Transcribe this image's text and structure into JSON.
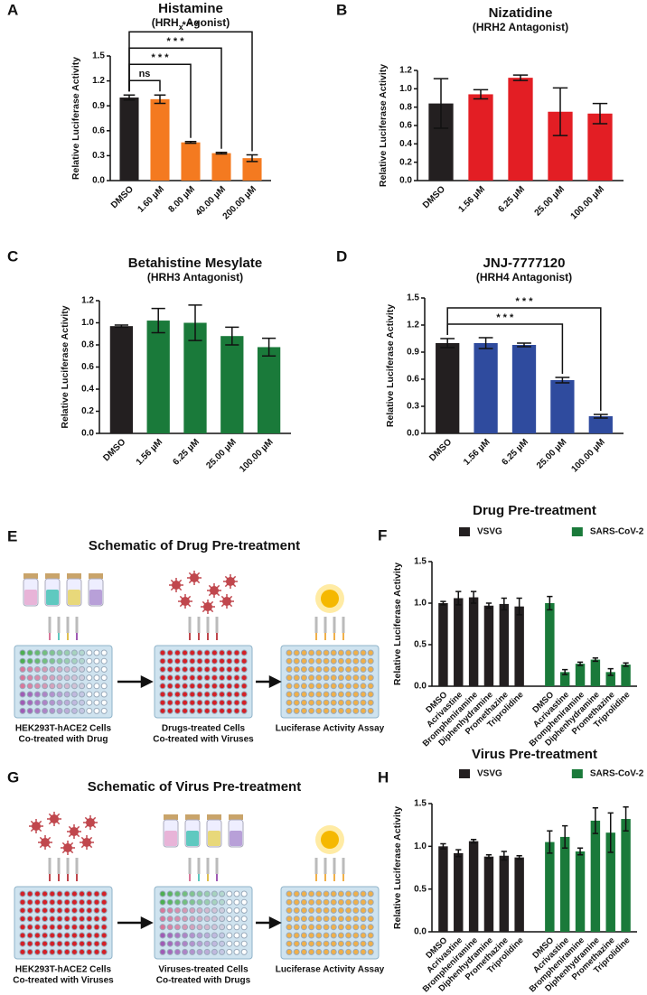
{
  "chart_data": [
    {
      "type": "bar",
      "panel": "A",
      "title": "Histamine",
      "subtitle": [
        "(HRH",
        "x",
        " Agonist)"
      ],
      "y_label": "Relative Luciferase Activity",
      "categories": [
        "DMSO",
        "1.60 µM",
        "8.00 µM",
        "40.00 µM",
        "200.00 µM"
      ],
      "values": [
        1.0,
        0.98,
        0.46,
        0.33,
        0.27
      ],
      "errors": [
        0.03,
        0.05,
        0.01,
        0.01,
        0.04
      ],
      "colors": [
        "#231f20",
        "#f47a20",
        "#f47a20",
        "#f47a20",
        "#f47a20"
      ],
      "ylim": [
        0,
        1.5
      ],
      "yticks": [
        {
          "value": 0,
          "label": "0.0"
        },
        0.3,
        0.6,
        0.9,
        1.2,
        1.5
      ],
      "annotations": [
        {
          "text": "ns",
          "between": [
            "DMSO",
            "1.60 µM"
          ]
        },
        {
          "text": "* * *",
          "between": [
            "DMSO",
            "8.00 µM"
          ]
        },
        {
          "text": "* * *",
          "between": [
            "DMSO",
            "40.00 µM"
          ]
        },
        {
          "text": "* * *",
          "between": [
            "DMSO",
            "200.00 µM"
          ]
        }
      ]
    },
    {
      "type": "bar",
      "panel": "B",
      "title": "Nizatidine",
      "subtitle": "(HRH2 Antagonist)",
      "y_label": "Relative Luciferase Activity",
      "categories": [
        "DMSO",
        "1.56 µM",
        "6.25 µM",
        "25.00 µM",
        "100.00 µM"
      ],
      "values": [
        0.84,
        0.94,
        1.12,
        0.75,
        0.73
      ],
      "errors": [
        0.27,
        0.05,
        0.03,
        0.26,
        0.11
      ],
      "colors": [
        "#231f20",
        "#e31e24",
        "#e31e24",
        "#e31e24",
        "#e31e24"
      ],
      "ylim": [
        0,
        1.2
      ],
      "yticks": [
        {
          "value": 0,
          "label": "0.0"
        },
        0.2,
        0.4,
        0.6,
        0.8,
        {
          "value": 1,
          "label": "1.0"
        },
        1.2
      ]
    },
    {
      "type": "bar",
      "panel": "C",
      "title": "Betahistine Mesylate",
      "subtitle": "(HRH3 Antagonist)",
      "y_label": "Relative Luciferase Activity",
      "categories": [
        "DMSO",
        "1.56 µM",
        "6.25 µM",
        "25.00 µM",
        "100.00 µM"
      ],
      "values": [
        0.97,
        1.02,
        1.0,
        0.88,
        0.78
      ],
      "errors": [
        0.01,
        0.11,
        0.16,
        0.08,
        0.08
      ],
      "colors": [
        "#231f20",
        "#1a7a3a",
        "#1a7a3a",
        "#1a7a3a",
        "#1a7a3a"
      ],
      "ylim": [
        0,
        1.2
      ],
      "yticks": [
        {
          "value": 0,
          "label": "0.0"
        },
        0.2,
        0.4,
        0.6,
        0.8,
        {
          "value": 1,
          "label": "1.0"
        },
        1.2
      ]
    },
    {
      "type": "bar",
      "panel": "D",
      "title": "JNJ-7777120",
      "subtitle": "(HRH4 Antagonist)",
      "y_label": "Relative Luciferase Activity",
      "categories": [
        "DMSO",
        "1.56 µM",
        "6.25 µM",
        "25.00 µM",
        "100.00 µM"
      ],
      "values": [
        1.0,
        1.0,
        0.98,
        0.59,
        0.19
      ],
      "errors": [
        0.05,
        0.06,
        0.02,
        0.03,
        0.02
      ],
      "colors": [
        "#231f20",
        "#2f4b9e",
        "#2f4b9e",
        "#2f4b9e",
        "#2f4b9e"
      ],
      "ylim": [
        0,
        1.5
      ],
      "yticks": [
        {
          "value": 0,
          "label": "0.0"
        },
        0.3,
        0.6,
        0.9,
        1.2,
        1.5
      ],
      "annotations": [
        {
          "text": "* * *",
          "between": [
            "DMSO",
            "25.00 µM"
          ]
        },
        {
          "text": "* * *",
          "between": [
            "DMSO",
            "100.00 µM"
          ]
        }
      ]
    },
    {
      "type": "bar",
      "panel": "F",
      "title": "Drug Pre-treatment",
      "y_label": "Relative Luciferase Activity",
      "categories": [
        "DMSO",
        "Acrivastine",
        "Brompheniramine",
        "Diphenhydramine",
        "Promethazine",
        "Triprolidine"
      ],
      "series": [
        {
          "name": "VSVG",
          "color": "#231f20",
          "values": [
            1.0,
            1.06,
            1.07,
            0.97,
            0.99,
            0.96
          ],
          "errors": [
            0.02,
            0.08,
            0.07,
            0.03,
            0.07,
            0.1
          ]
        },
        {
          "name": "SARS-CoV-2",
          "color": "#1a7a3a",
          "values": [
            1.0,
            0.17,
            0.27,
            0.32,
            0.17,
            0.26
          ],
          "errors": [
            0.08,
            0.03,
            0.02,
            0.02,
            0.04,
            0.02
          ]
        }
      ],
      "ylim": [
        0,
        1.5
      ],
      "yticks": [
        {
          "value": 0,
          "label": "0.0"
        },
        0.5,
        {
          "value": 1,
          "label": "1.0"
        },
        1.5
      ]
    },
    {
      "type": "bar",
      "panel": "H",
      "title": "Virus Pre-treatment",
      "y_label": "Relative Luciferase Activity",
      "categories": [
        "DMSO",
        "Acrivastine",
        "Brompheniramine",
        "Diphenhydramine",
        "Promethazine",
        "Triprolidine"
      ],
      "series": [
        {
          "name": "VSVG",
          "color": "#231f20",
          "values": [
            1.0,
            0.92,
            1.06,
            0.88,
            0.89,
            0.87
          ],
          "errors": [
            0.03,
            0.04,
            0.02,
            0.02,
            0.05,
            0.02
          ]
        },
        {
          "name": "SARS-CoV-2",
          "color": "#1a7a3a",
          "values": [
            1.05,
            1.11,
            0.94,
            1.3,
            1.16,
            1.32
          ],
          "errors": [
            0.13,
            0.13,
            0.04,
            0.15,
            0.23,
            0.14
          ]
        }
      ],
      "ylim": [
        0,
        1.5
      ],
      "yticks": [
        {
          "value": 0,
          "label": "0.0"
        },
        0.5,
        {
          "value": 1,
          "label": "1.0"
        },
        1.5
      ]
    }
  ],
  "schematics": [
    {
      "panel": "E",
      "title": "Schematic of Drug Pre-treatment",
      "captions": [
        [
          "HEK293T-hACE2 Cells",
          "Co-treated with Drug"
        ],
        [
          "Drugs-treated Cells",
          "Co-treated with Viruses"
        ],
        [
          "Luciferase Activity Assay"
        ]
      ]
    },
    {
      "panel": "G",
      "title": "Schematic of Virus Pre-treatment",
      "captions": [
        [
          "HEK293T-hACE2 Cells",
          "Co-treated with Viruses"
        ],
        [
          "Viruses-treated Cells",
          "Co-treated with Drugs"
        ],
        [
          "Luciferase Activity Assay"
        ]
      ]
    }
  ]
}
